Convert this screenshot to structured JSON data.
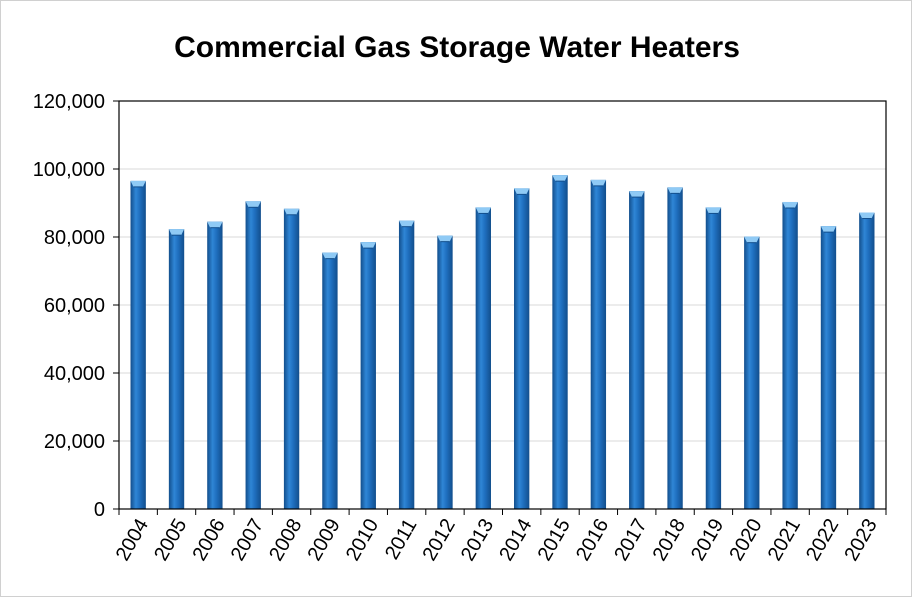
{
  "chart_data": {
    "type": "bar",
    "title": "Commercial Gas Storage Water Heaters",
    "xlabel": "",
    "ylabel": "",
    "categories": [
      "2004",
      "2005",
      "2006",
      "2007",
      "2008",
      "2009",
      "2010",
      "2011",
      "2012",
      "2013",
      "2014",
      "2015",
      "2016",
      "2017",
      "2018",
      "2019",
      "2020",
      "2021",
      "2022",
      "2023"
    ],
    "values": [
      96500,
      82300,
      84500,
      90500,
      88300,
      75400,
      78500,
      84800,
      80400,
      88700,
      94300,
      98200,
      96800,
      93500,
      94600,
      88700,
      80100,
      90300,
      83200,
      87200
    ],
    "ylim": [
      0,
      120000
    ],
    "yticks": [
      0,
      20000,
      40000,
      60000,
      80000,
      100000,
      120000
    ],
    "ytick_labels": [
      "0",
      "20,000",
      "40,000",
      "60,000",
      "80,000",
      "100,000",
      "120,000"
    ],
    "grid": "horizontal",
    "legend": "none",
    "colors": {
      "bar": "#1f6fbf",
      "bar_dark": "#124e8c",
      "bar_light": "#56a3e8",
      "bar_top": "#8fcaf5",
      "grid": "#d9d9d9",
      "axis": "#000000"
    }
  }
}
